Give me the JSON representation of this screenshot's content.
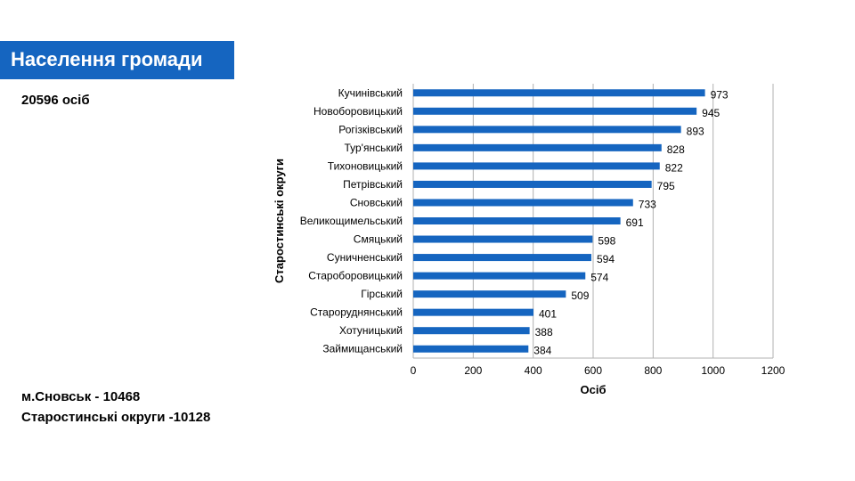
{
  "header": {
    "title": "Населення громади"
  },
  "summary": {
    "total": "20596 осіб",
    "city": "м.Сновськ - 10468",
    "districts": "Старостинські округи -10128"
  },
  "colors": {
    "banner": "#1565c0",
    "bar": "#1565c0",
    "grid": "#b0b0b0"
  },
  "chart_data": {
    "type": "bar",
    "orientation": "horizontal",
    "categories": [
      "Кучинівський",
      "Новоборовицький",
      "Рогізківський",
      "Тур'янський",
      "Тихоновицький",
      "Петрівський",
      "Сновський",
      "Великощимельський",
      "Смяцький",
      "Суничненський",
      "Староборовицький",
      "Гірський",
      "Староруднянський",
      "Хотуницький",
      "Займищанський"
    ],
    "values": [
      973,
      945,
      893,
      828,
      822,
      795,
      733,
      691,
      598,
      594,
      574,
      509,
      401,
      388,
      384
    ],
    "data_labels": [
      "973",
      "945",
      "893",
      "828",
      "822",
      "795",
      "733",
      "691",
      "598",
      "594",
      "574",
      "509",
      "401",
      "388",
      "384"
    ],
    "xlabel": "Осіб",
    "ylabel": "Старостинські округи",
    "xlim": [
      0,
      1200
    ],
    "xticks": [
      "0",
      "200",
      "400",
      "600",
      "800",
      "1000",
      "1200"
    ],
    "grid": true,
    "legend": false
  }
}
